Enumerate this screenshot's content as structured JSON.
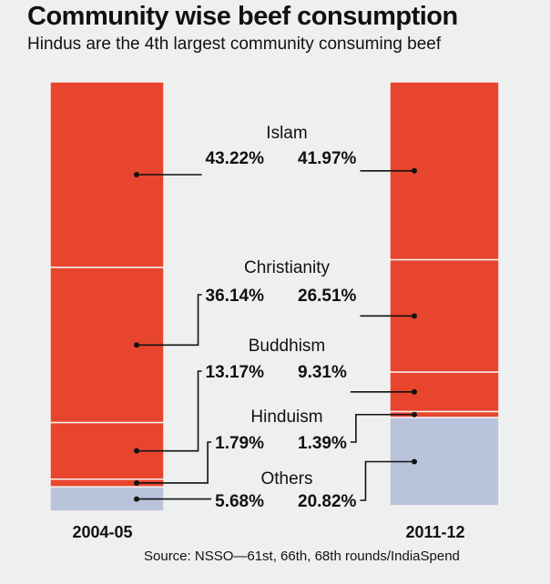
{
  "chart_data": {
    "type": "bar",
    "stacked": true,
    "orientation": "vertical",
    "title": "Community wise beef consumption",
    "subtitle": "Hindus are the 4th largest community consuming beef",
    "source": "Source: NSSO—61st, 66th, 68th rounds/IndiaSpend",
    "categories": [
      "2004-05",
      "2011-12"
    ],
    "unit": "%",
    "series": [
      {
        "name": "Islam",
        "values": [
          43.22,
          41.97
        ],
        "labels": [
          "43.22%",
          "41.97%"
        ],
        "color": "#e8452f"
      },
      {
        "name": "Christianity",
        "values": [
          36.14,
          26.51
        ],
        "labels": [
          "36.14%",
          "26.51%"
        ],
        "color": "#e8452f"
      },
      {
        "name": "Buddhism",
        "values": [
          13.17,
          9.31
        ],
        "labels": [
          "13.17%",
          "9.31%"
        ],
        "color": "#e8452f"
      },
      {
        "name": "Hinduism",
        "values": [
          1.79,
          1.39
        ],
        "labels": [
          "1.79%",
          "1.39%"
        ],
        "color": "#e8452f"
      },
      {
        "name": "Others",
        "values": [
          5.68,
          20.82
        ],
        "labels": [
          "5.68%",
          "20.82%"
        ],
        "color": "#b9c3dc"
      }
    ],
    "grid": false,
    "legend": "inline labels between bars"
  }
}
